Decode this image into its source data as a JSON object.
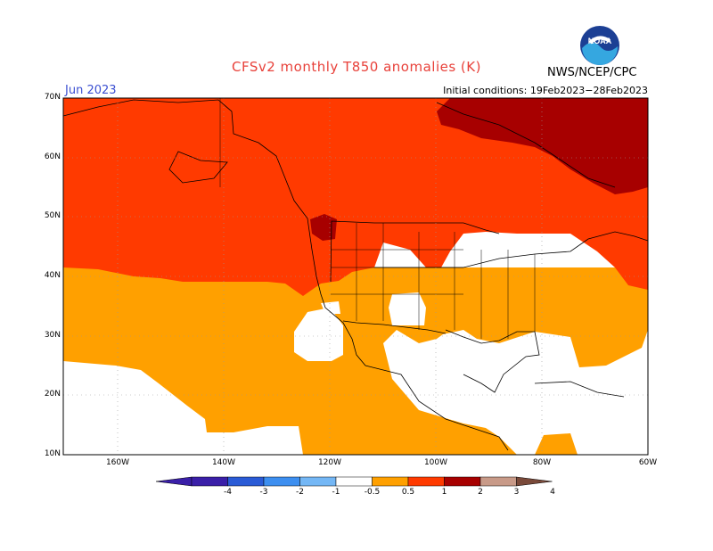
{
  "title": "CFSv2 monthly T850 anomalies (K)",
  "valid_month": "Jun 2023",
  "initial_conditions": "Initial conditions: 19Feb2023−28Feb2023",
  "agency": "NWS/NCEP/CPC",
  "logo_text": "NOAA",
  "lat_labels": [
    "70N",
    "60N",
    "50N",
    "40N",
    "30N",
    "20N",
    "10N"
  ],
  "lon_labels": [
    "160W",
    "140W",
    "120W",
    "100W",
    "80W",
    "60W"
  ],
  "colorbar": {
    "labels": [
      "-4",
      "-3",
      "-2",
      "-1",
      "-0.5",
      "0.5",
      "1",
      "2",
      "3",
      "4"
    ],
    "colors": [
      "#3a1fa8",
      "#2a5bd6",
      "#3d8ff0",
      "#74b7f5",
      "#ffffff",
      "#ffa000",
      "#ff3a00",
      "#a70000",
      "#c89a88",
      "#7a4a3a"
    ]
  },
  "colors": {
    "anom_0_5_to_1": "#ffa000",
    "anom_1_to_2": "#ff3a00",
    "anom_2_to_3": "#a70000",
    "neutral": "#ffffff"
  }
}
